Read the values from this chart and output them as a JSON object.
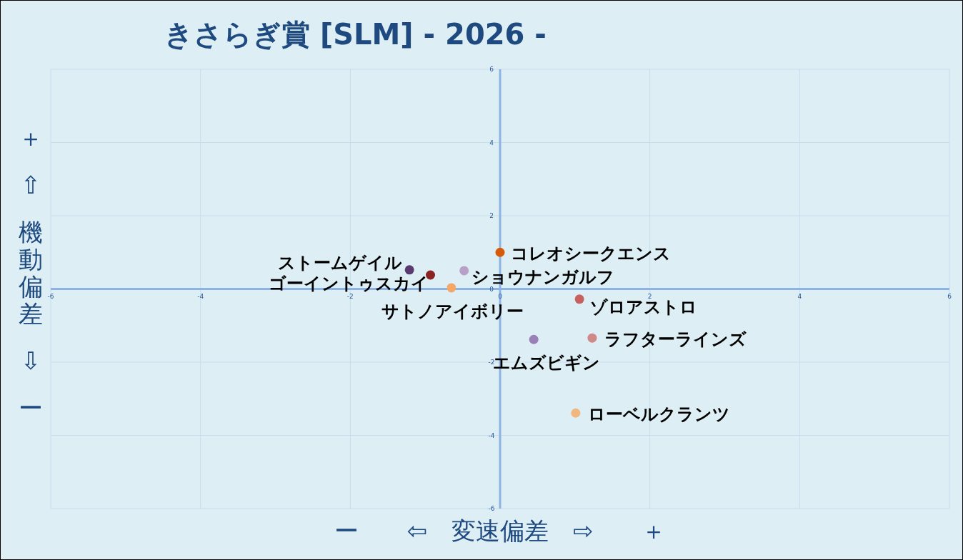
{
  "chart_data": {
    "type": "scatter",
    "title": "きさらぎ賞 [SLM]  - 2026 -",
    "xlabel": "ー ⇦　変速偏差　⇨ ＋",
    "ylabel": "＋ ⇧ 機動偏差 ⇩ ー",
    "xlim": [
      -6,
      6
    ],
    "ylim": [
      -6,
      6
    ],
    "xticks": [
      -6,
      -4,
      -2,
      0,
      2,
      4,
      6
    ],
    "yticks": [
      -6,
      -4,
      -2,
      0,
      2,
      4,
      6
    ],
    "grid": true,
    "marker": "circle",
    "series": [
      {
        "name": "コレオシークエンス",
        "color": "#d65a0a",
        "x": [
          0
        ],
        "values": [
          1.0
        ]
      },
      {
        "name": "ストームゲイル",
        "color": "#5a3a70",
        "x": [
          -1.21
        ],
        "values": [
          0.52
        ]
      },
      {
        "name": "ゴーイントゥスカイ",
        "color": "#8b2323",
        "x": [
          -0.93
        ],
        "values": [
          0.38
        ]
      },
      {
        "name": "ショウナンガルフ",
        "color": "#b8a0c8",
        "x": [
          -0.48
        ],
        "values": [
          0.5
        ]
      },
      {
        "name": "サトノアイボリー",
        "color": "#f4a868",
        "x": [
          -0.65
        ],
        "values": [
          0.03
        ]
      },
      {
        "name": "ゾロアストロ",
        "color": "#c96060",
        "x": [
          1.06
        ],
        "values": [
          -0.28
        ]
      },
      {
        "name": "ラフターラインズ",
        "color": "#d08888",
        "x": [
          1.23
        ],
        "values": [
          -1.34
        ]
      },
      {
        "name": "エムズビギン",
        "color": "#9a80b8",
        "x": [
          0.45
        ],
        "values": [
          -1.38
        ]
      },
      {
        "name": "ローベルクランツ",
        "color": "#f0b880",
        "x": [
          1.01
        ],
        "values": [
          -3.39
        ]
      }
    ]
  }
}
